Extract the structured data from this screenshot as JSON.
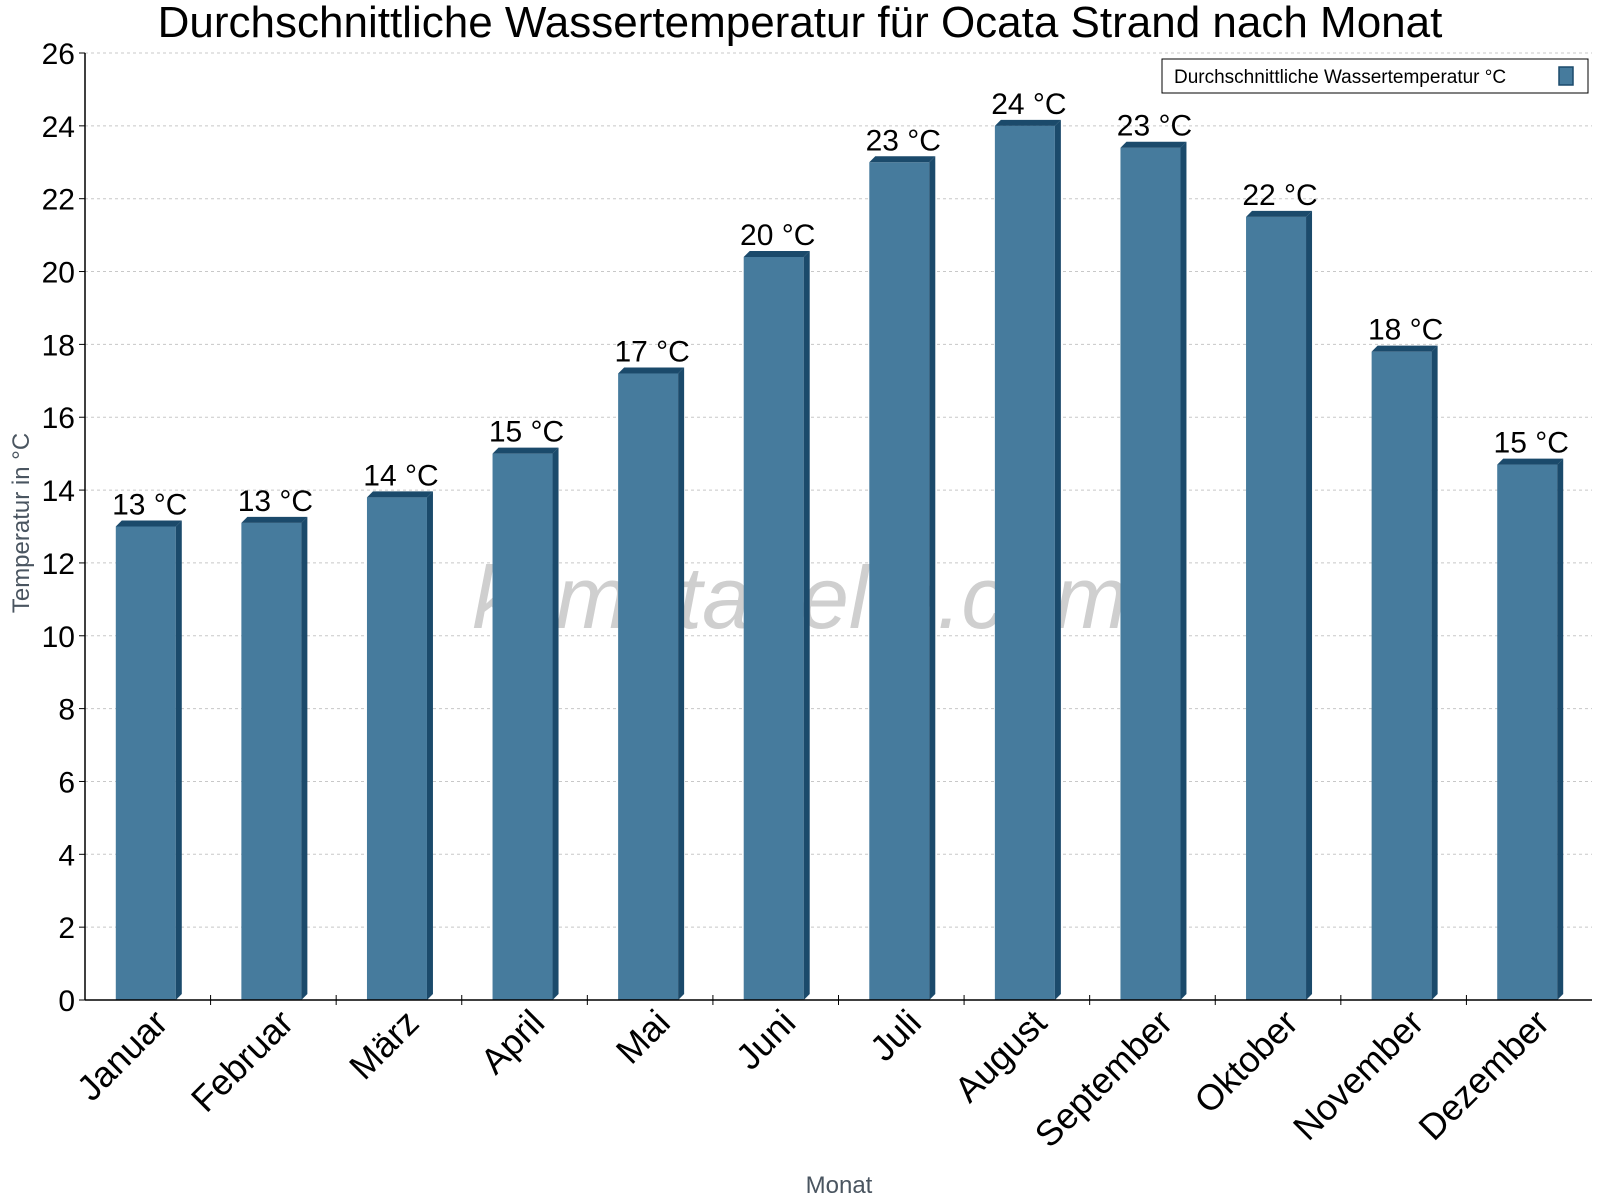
{
  "chart_data": {
    "type": "bar",
    "title": "Durchschnittliche Wassertemperatur für Ocata Strand nach Monat",
    "xlabel": "Monat",
    "ylabel": "Temperatur in °C",
    "ylim": [
      0,
      26
    ],
    "yticks": [
      0,
      2,
      4,
      6,
      8,
      10,
      12,
      14,
      16,
      18,
      20,
      22,
      24,
      26
    ],
    "grid": true,
    "legend_position": "top-right",
    "categories": [
      "Januar",
      "Februar",
      "März",
      "April",
      "Mai",
      "Juni",
      "Juli",
      "August",
      "September",
      "Oktober",
      "November",
      "Dezember"
    ],
    "series": [
      {
        "name": "Durchschnittliche Wassertemperatur °C",
        "values": [
          13.0,
          13.1,
          13.8,
          15.0,
          17.2,
          20.4,
          23.0,
          24.0,
          23.4,
          21.5,
          17.8,
          14.7
        ],
        "labels": [
          "13 °C",
          "13 °C",
          "14 °C",
          "15 °C",
          "17 °C",
          "20 °C",
          "23 °C",
          "24 °C",
          "23 °C",
          "22 °C",
          "18 °C",
          "15 °C"
        ],
        "color": "#467b9d",
        "edge_color": "#1b4a6b"
      }
    ]
  },
  "watermark": "klimatabelle.com"
}
